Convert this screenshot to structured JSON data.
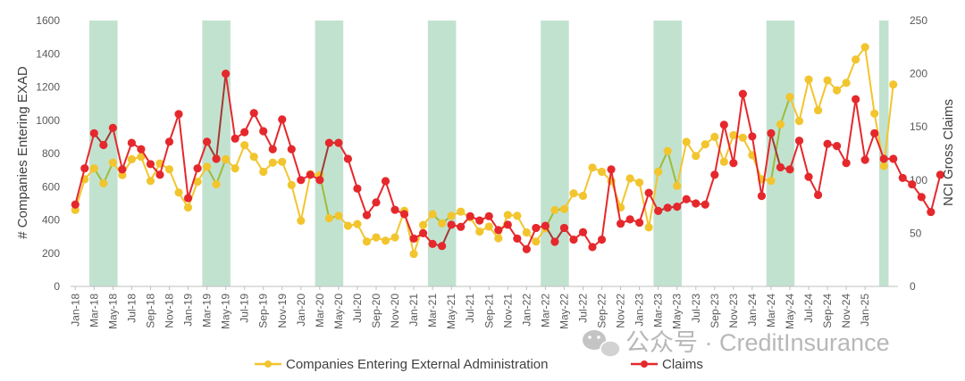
{
  "chart_data": {
    "type": "line",
    "title": "",
    "ylabel_left": "# Companies Entering EXAD",
    "ylabel_right": "NCI Gross Claims",
    "ylim_left": [
      0,
      1600
    ],
    "ylim_right": [
      0,
      250
    ],
    "yticks_left": [
      0,
      200,
      400,
      600,
      800,
      1000,
      1200,
      1400,
      1600
    ],
    "yticks_right": [
      0,
      50,
      100,
      150,
      200,
      250
    ],
    "grid": false,
    "legend_position": "bottom",
    "x_tick_labels": [
      "Jan-18",
      "Mar-18",
      "May-18",
      "Jul-18",
      "Sep-18",
      "Nov-18",
      "Jan-19",
      "Mar-19",
      "May-19",
      "Jul-19",
      "Sep-19",
      "Nov-19",
      "Jan-20",
      "Mar-20",
      "May-20",
      "Jul-20",
      "Sep-20",
      "Nov-20",
      "Jan-21",
      "Mar-21",
      "May-21",
      "Jul-21",
      "Sep-21",
      "Nov-21",
      "Jan-22",
      "Mar-22",
      "May-22",
      "Jul-22",
      "Sep-22",
      "Nov-22",
      "Jan-23",
      "Mar-23",
      "May-23",
      "Jul-23",
      "Sep-23",
      "Nov-23",
      "Jan-24",
      "Mar-24",
      "May-24",
      "Jul-24",
      "Sep-24",
      "Nov-24",
      "Jan-25"
    ],
    "x_start": "Jan-18",
    "shaded_periods": [
      [
        "Mar-18",
        "May-18"
      ],
      [
        "Mar-19",
        "May-19"
      ],
      [
        "Mar-20",
        "May-20"
      ],
      [
        "Mar-21",
        "May-21"
      ],
      [
        "Mar-22",
        "May-22"
      ],
      [
        "Mar-23",
        "May-23"
      ],
      [
        "Mar-24",
        "May-24"
      ],
      [
        "Mar-25",
        "Mar-25"
      ]
    ],
    "series": [
      {
        "name": "Companies Entering External Administration",
        "axis": "left",
        "color": "#F2C52E",
        "highlight_color": "#9DBB3A",
        "values": [
          460,
          645,
          710,
          620,
          745,
          670,
          765,
          780,
          635,
          740,
          705,
          565,
          475,
          630,
          720,
          615,
          765,
          710,
          850,
          780,
          690,
          745,
          750,
          610,
          395,
          675,
          670,
          410,
          425,
          365,
          375,
          270,
          295,
          275,
          295,
          455,
          195,
          370,
          435,
          380,
          425,
          450,
          415,
          330,
          360,
          290,
          430,
          425,
          325,
          270,
          350,
          460,
          465,
          560,
          545,
          715,
          690,
          635,
          475,
          650,
          625,
          355,
          690,
          815,
          605,
          870,
          785,
          855,
          900,
          750,
          910,
          895,
          790,
          645,
          635,
          975,
          1140,
          995,
          1245,
          1060,
          1240,
          1180,
          1225,
          1365,
          1440,
          1040,
          725,
          1215
        ]
      },
      {
        "name": "Claims",
        "axis": "right",
        "color": "#E5282C",
        "highlight_color": "#A33A32",
        "values": [
          77,
          111,
          144,
          133,
          149,
          110,
          135,
          129,
          115,
          105,
          136,
          162,
          83,
          111,
          136,
          120,
          200,
          139,
          145,
          163,
          146,
          129,
          157,
          129,
          100,
          105,
          100,
          135,
          135,
          120,
          92,
          67,
          79,
          99,
          72,
          68,
          45,
          50,
          40,
          38,
          58,
          56,
          66,
          62,
          66,
          53,
          58,
          45,
          35,
          55,
          57,
          42,
          55,
          44,
          51,
          37,
          44,
          110,
          59,
          63,
          60,
          88,
          71,
          74,
          75,
          82,
          78,
          77,
          105,
          152,
          116,
          181,
          141,
          85,
          144,
          112,
          110,
          137,
          103,
          86,
          134,
          132,
          116,
          176,
          119,
          144,
          120,
          120,
          102,
          96,
          84,
          70,
          105
        ]
      }
    ]
  },
  "watermark": {
    "icon": "wechat-icon",
    "text": "公众号 · CreditInsurance"
  }
}
